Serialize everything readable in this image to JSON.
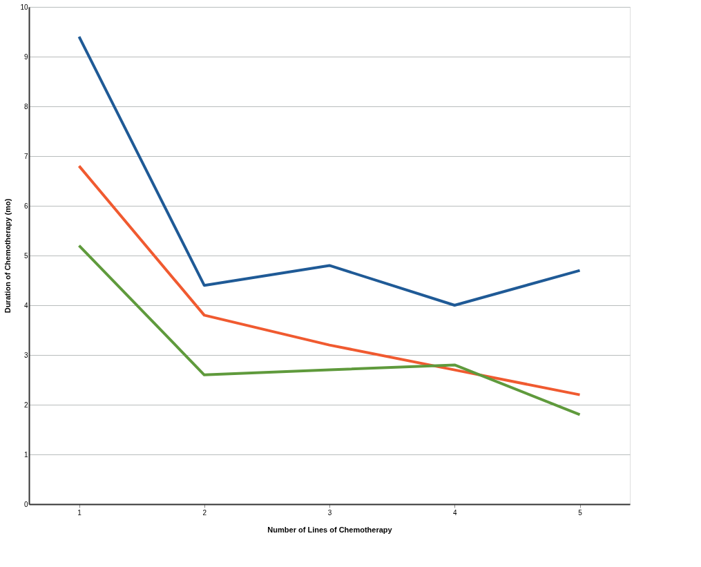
{
  "chart_data": {
    "type": "line",
    "xlabel": "Number of Lines of Chemotherapy",
    "ylabel": "Duration of Chemotherapy (mo)",
    "categories": [
      "1",
      "2",
      "3",
      "4",
      "5"
    ],
    "series": [
      {
        "color": "#1f5a96",
        "values": [
          9.4,
          4.4,
          4.8,
          4.0,
          4.7
        ]
      },
      {
        "color": "#f05a30",
        "values": [
          6.8,
          3.8,
          3.2,
          2.7,
          2.2
        ]
      },
      {
        "color": "#5f9a3c",
        "values": [
          5.2,
          2.6,
          2.7,
          2.8,
          1.8
        ]
      }
    ],
    "ylim": [
      0,
      10
    ],
    "yticks": [
      0,
      1,
      2,
      3,
      4,
      5,
      6,
      7,
      8,
      9,
      10
    ],
    "grid": "y",
    "legend": false,
    "marker": "none",
    "line_style": "solid"
  }
}
